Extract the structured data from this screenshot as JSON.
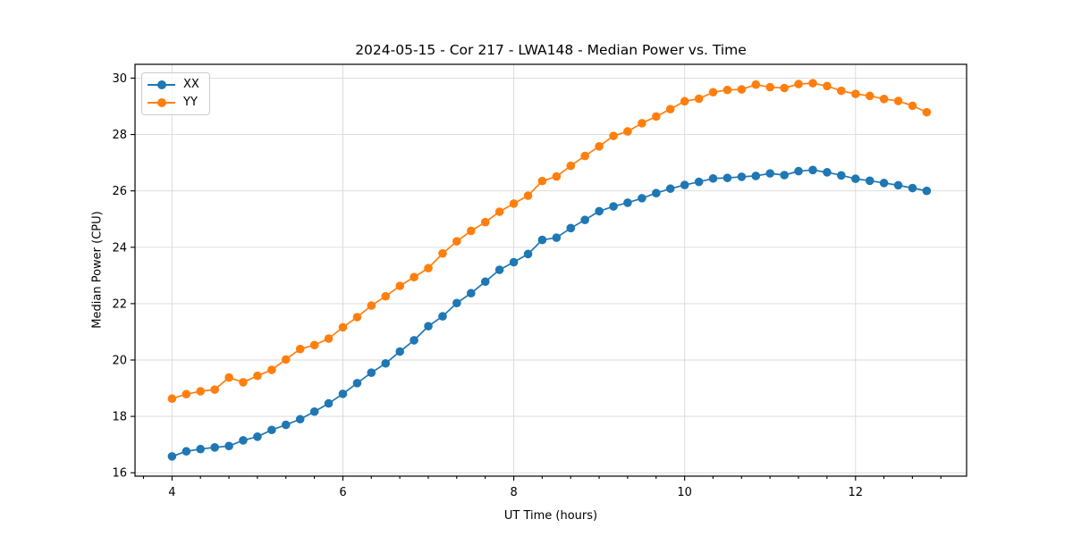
{
  "chart_data": {
    "type": "line",
    "title": "2024-05-15 - Cor 217 - LWA148 - Median Power vs. Time",
    "xlabel": "UT Time (hours)",
    "ylabel": "Median Power (CPU)",
    "xlim": [
      3.567,
      13.3
    ],
    "ylim": [
      15.88,
      30.49
    ],
    "xticks": [
      4,
      6,
      8,
      10,
      12
    ],
    "yticks": [
      16,
      18,
      20,
      22,
      24,
      26,
      28,
      30
    ],
    "x_minor_interval": 0.3333,
    "grid": true,
    "legend_position": "upper left",
    "marker": "circle",
    "x": [
      4.0,
      4.167,
      4.333,
      4.5,
      4.667,
      4.833,
      5.0,
      5.167,
      5.333,
      5.5,
      5.667,
      5.833,
      6.0,
      6.167,
      6.333,
      6.5,
      6.667,
      6.833,
      7.0,
      7.167,
      7.333,
      7.5,
      7.667,
      7.833,
      8.0,
      8.167,
      8.333,
      8.5,
      8.667,
      8.833,
      9.0,
      9.167,
      9.333,
      9.5,
      9.667,
      9.833,
      10.0,
      10.167,
      10.333,
      10.5,
      10.667,
      10.833,
      11.0,
      11.167,
      11.333,
      11.5,
      11.667,
      11.833,
      12.0,
      12.167,
      12.333,
      12.5,
      12.667,
      12.833
    ],
    "series": [
      {
        "name": "XX",
        "color": "#1f77b4",
        "values": [
          16.58,
          16.76,
          16.84,
          16.9,
          16.95,
          17.15,
          17.28,
          17.52,
          17.7,
          17.9,
          18.17,
          18.46,
          18.8,
          19.18,
          19.55,
          19.88,
          20.3,
          20.7,
          21.2,
          21.55,
          22.02,
          22.37,
          22.78,
          23.2,
          23.47,
          23.76,
          24.26,
          24.34,
          24.68,
          24.97,
          25.28,
          25.45,
          25.58,
          25.74,
          25.92,
          26.08,
          26.21,
          26.32,
          26.44,
          26.46,
          26.5,
          26.53,
          26.62,
          26.56,
          26.7,
          26.74,
          26.66,
          26.55,
          26.43,
          26.36,
          26.28,
          26.2,
          26.1,
          26.0
        ]
      },
      {
        "name": "YY",
        "color": "#ff7f0e",
        "values": [
          18.63,
          18.79,
          18.89,
          18.95,
          19.38,
          19.21,
          19.44,
          19.65,
          20.02,
          20.39,
          20.53,
          20.76,
          21.16,
          21.52,
          21.93,
          22.26,
          22.63,
          22.94,
          23.26,
          23.78,
          24.21,
          24.58,
          24.89,
          25.26,
          25.55,
          25.83,
          26.35,
          26.51,
          26.89,
          27.24,
          27.58,
          27.95,
          28.11,
          28.4,
          28.64,
          28.9,
          29.18,
          29.27,
          29.5,
          29.58,
          29.6,
          29.77,
          29.68,
          29.65,
          29.79,
          29.82,
          29.72,
          29.55,
          29.44,
          29.37,
          29.26,
          29.19,
          29.02,
          28.79
        ]
      }
    ],
    "axis_color": "#000000",
    "grid_color": "#d9d9d9",
    "background_color": "#ffffff"
  }
}
